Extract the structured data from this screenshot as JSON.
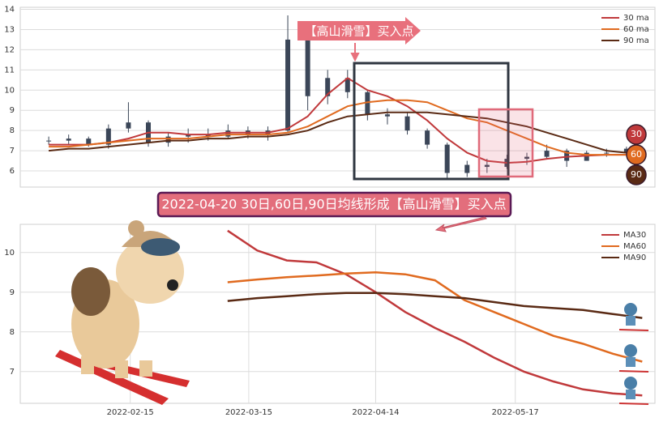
{
  "chart_data": [
    {
      "type": "candlestick",
      "x": [
        "2021-11-24",
        "2021-12-01",
        "2021-12-08",
        "2021-12-15",
        "2021-12-22",
        "2021-12-29",
        "2022-01-05",
        "2022-01-12",
        "2022-01-19",
        "2022-01-26",
        "2022-02-02",
        "2022-02-09",
        "2022-02-16",
        "2022-02-23",
        "2022-03-02",
        "2022-03-09",
        "2022-03-16",
        "2022-03-23",
        "2022-03-30",
        "2022-04-06",
        "2022-04-13",
        "2022-04-20",
        "2022-04-27",
        "2022-05-04",
        "2022-05-11",
        "2022-05-18",
        "2022-05-25",
        "2022-06-01",
        "2022-06-08",
        "2022-06-15"
      ],
      "open": [
        7.5,
        7.5,
        7.6,
        7.3,
        8.1,
        8.4,
        7.4,
        7.7,
        7.8,
        7.7,
        8.0,
        7.8,
        8.0,
        12.5,
        9.7,
        10.6,
        9.9,
        8.8,
        8.7,
        8.0,
        7.3,
        5.9,
        6.3,
        6.2,
        6.6,
        6.7,
        7.0,
        6.5,
        6.9,
        6.9
      ],
      "high": [
        7.7,
        7.8,
        7.7,
        8.3,
        9.4,
        8.5,
        7.9,
        8.1,
        8.1,
        8.3,
        8.2,
        8.2,
        13.7,
        12.8,
        11.0,
        11.0,
        10.0,
        9.1,
        8.9,
        8.1,
        7.4,
        6.5,
        6.6,
        6.8,
        6.9,
        7.3,
        7.1,
        7.0,
        7.1,
        7.2
      ],
      "low": [
        7.3,
        7.3,
        7.2,
        7.1,
        7.9,
        7.2,
        7.2,
        7.4,
        7.5,
        7.6,
        7.6,
        7.5,
        7.9,
        9.0,
        9.3,
        9.6,
        8.5,
        8.3,
        7.8,
        7.1,
        5.6,
        5.7,
        5.9,
        6.1,
        6.3,
        6.6,
        6.2,
        6.5,
        6.7,
        6.9
      ],
      "close": [
        7.5,
        7.6,
        7.3,
        8.1,
        8.4,
        7.4,
        7.7,
        7.8,
        7.7,
        8.0,
        7.8,
        8.0,
        12.5,
        9.7,
        10.6,
        9.9,
        8.8,
        8.7,
        8.0,
        7.3,
        5.9,
        6.3,
        6.2,
        6.6,
        6.7,
        7.0,
        6.5,
        6.9,
        6.9,
        7.1
      ],
      "candle_color": "#3b4658",
      "series": [
        {
          "name": "30 ma",
          "color": "#c0393b",
          "values": [
            7.3,
            7.3,
            7.3,
            7.4,
            7.6,
            7.9,
            7.9,
            7.8,
            7.8,
            7.9,
            7.9,
            7.9,
            8.1,
            8.7,
            9.8,
            10.6,
            10.0,
            9.7,
            9.2,
            8.5,
            7.6,
            6.9,
            6.5,
            6.4,
            6.45,
            6.6,
            6.7,
            6.75,
            6.8,
            6.8
          ]
        },
        {
          "name": "60 ma",
          "color": "#e06a1f",
          "values": [
            7.2,
            7.2,
            7.3,
            7.4,
            7.5,
            7.6,
            7.6,
            7.6,
            7.7,
            7.8,
            7.8,
            7.8,
            7.9,
            8.2,
            8.7,
            9.2,
            9.4,
            9.5,
            9.5,
            9.4,
            9.0,
            8.6,
            8.4,
            8.0,
            7.6,
            7.2,
            6.9,
            6.8,
            6.8,
            6.8
          ]
        },
        {
          "name": "90 ma",
          "color": "#5a2a14",
          "values": [
            7.0,
            7.1,
            7.1,
            7.2,
            7.3,
            7.4,
            7.5,
            7.5,
            7.6,
            7.6,
            7.7,
            7.7,
            7.8,
            8.0,
            8.4,
            8.7,
            8.8,
            8.9,
            8.9,
            8.9,
            8.8,
            8.7,
            8.6,
            8.4,
            8.2,
            7.9,
            7.6,
            7.3,
            7.0,
            6.9
          ]
        }
      ],
      "xlim": [
        "2021-11-14",
        "2022-06-25"
      ],
      "ylim": [
        5.2,
        14.1
      ],
      "yticks": [
        6,
        7,
        8,
        9,
        10,
        11,
        12,
        13,
        14
      ],
      "grid": true,
      "legend": "upper right",
      "annotation": "【高山滑雪】买入点",
      "badges": [
        "30",
        "60",
        "90"
      ]
    },
    {
      "type": "line",
      "x": [
        "2022-03-10",
        "2022-03-17",
        "2022-03-24",
        "2022-03-31",
        "2022-04-07",
        "2022-04-14",
        "2022-04-21",
        "2022-04-28",
        "2022-05-05",
        "2022-05-12",
        "2022-05-19",
        "2022-05-26",
        "2022-06-02",
        "2022-06-09",
        "2022-06-16"
      ],
      "series": [
        {
          "name": "MA30",
          "color": "#c0393b",
          "values": [
            10.55,
            10.05,
            9.8,
            9.75,
            9.45,
            9.0,
            8.5,
            8.1,
            7.75,
            7.35,
            7.0,
            6.75,
            6.55,
            6.45,
            6.4
          ]
        },
        {
          "name": "MA60",
          "color": "#e06a1f",
          "values": [
            9.25,
            9.32,
            9.38,
            9.42,
            9.47,
            9.5,
            9.45,
            9.3,
            8.8,
            8.5,
            8.2,
            7.9,
            7.7,
            7.45,
            7.25
          ]
        },
        {
          "name": "MA90",
          "color": "#5a2a14",
          "values": [
            8.78,
            8.85,
            8.9,
            8.95,
            8.98,
            8.98,
            8.95,
            8.9,
            8.85,
            8.75,
            8.65,
            8.6,
            8.55,
            8.45,
            8.35
          ]
        }
      ],
      "xlim": [
        "2022-01-20",
        "2022-06-19"
      ],
      "xticks": [
        "2022-02-15",
        "2022-03-15",
        "2022-04-14",
        "2022-05-17"
      ],
      "ylim": [
        6.2,
        10.71
      ],
      "yticks": [
        7,
        8,
        9,
        10
      ],
      "grid": true,
      "legend": "upper right",
      "annotation": "2022-04-20 30日,60日,90日均线形成【高山滑雪】买入点"
    }
  ]
}
